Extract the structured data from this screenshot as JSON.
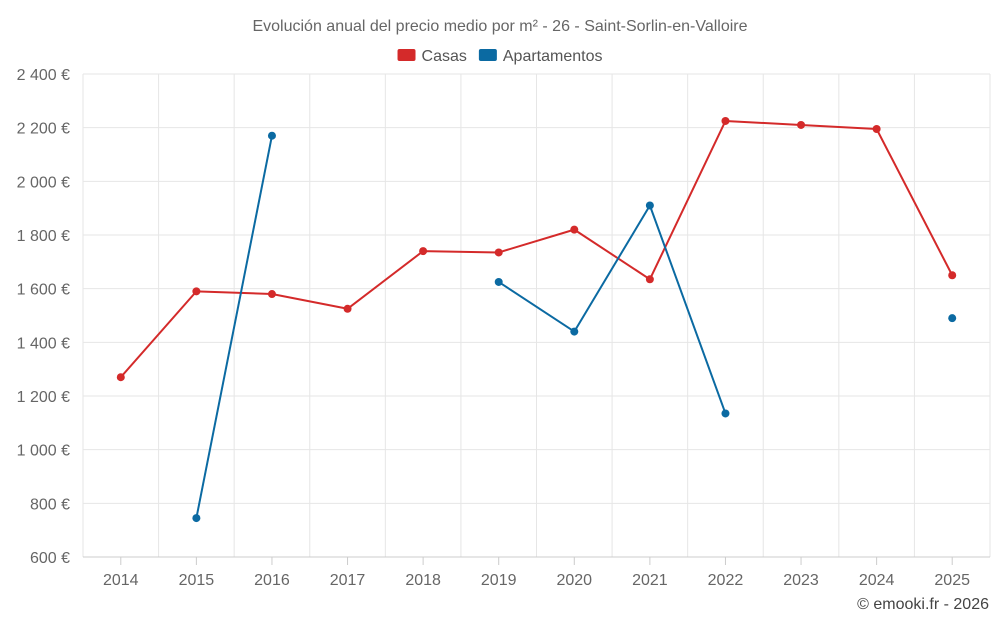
{
  "chart_data": {
    "type": "line",
    "title": "Evolución anual del precio medio por m² - 26 - Saint-Sorlin-en-Valloire",
    "categories": [
      "2014",
      "2015",
      "2016",
      "2017",
      "2018",
      "2019",
      "2020",
      "2021",
      "2022",
      "2023",
      "2024",
      "2025"
    ],
    "ylim": [
      600,
      2400
    ],
    "yticks": [
      600,
      800,
      1000,
      1200,
      1400,
      1600,
      1800,
      2000,
      2200,
      2400
    ],
    "ytick_labels": [
      "600 €",
      "800 €",
      "1 000 €",
      "1 200 €",
      "1 400 €",
      "1 600 €",
      "1 800 €",
      "2 000 €",
      "2 200 €",
      "2 400 €"
    ],
    "grid": true,
    "legend_position": "top-center",
    "series": [
      {
        "name": "Casas",
        "color": "#d42a2a",
        "values": [
          1270,
          1590,
          1580,
          1525,
          1740,
          1735,
          1820,
          1635,
          2225,
          2210,
          2195,
          1650
        ]
      },
      {
        "name": "Apartamentos",
        "color": "#0b6aa2",
        "values": [
          null,
          745,
          2170,
          null,
          null,
          1625,
          1440,
          1910,
          1135,
          null,
          null,
          1490
        ]
      }
    ],
    "credit": "© emooki.fr - 2026"
  }
}
